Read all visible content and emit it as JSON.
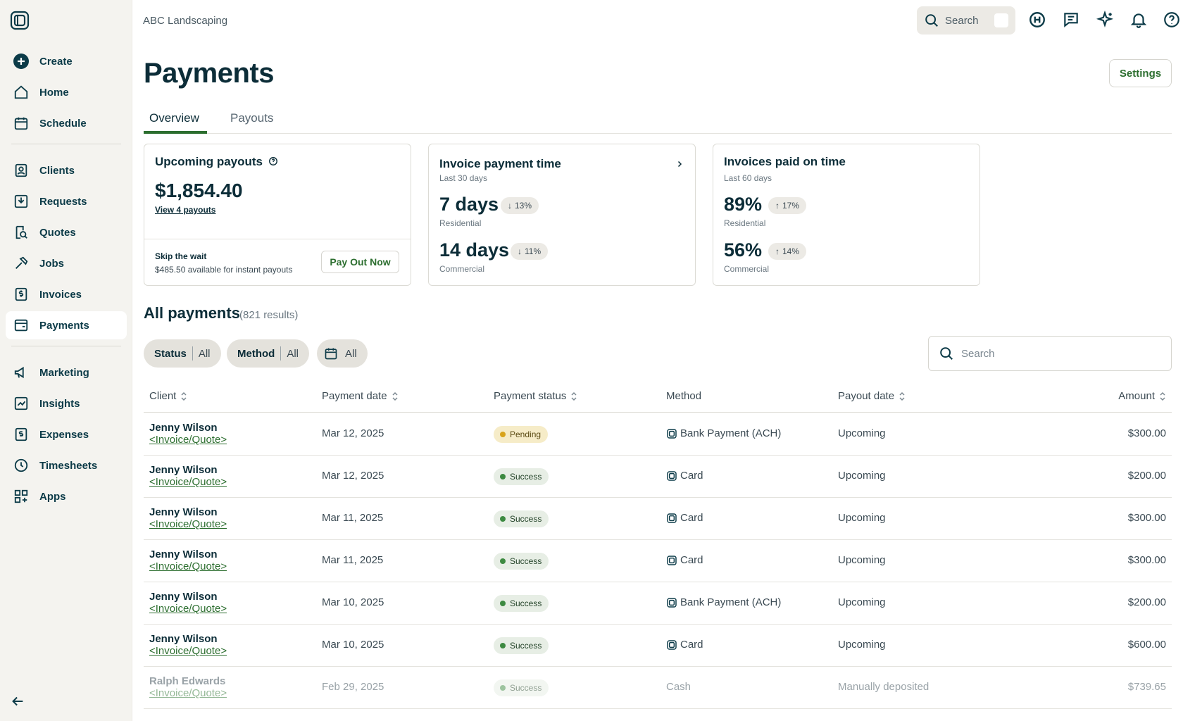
{
  "company": "ABC Landscaping",
  "topbar": {
    "search_label": "Search"
  },
  "nav": {
    "create": "Create",
    "home": "Home",
    "schedule": "Schedule",
    "clients": "Clients",
    "requests": "Requests",
    "quotes": "Quotes",
    "jobs": "Jobs",
    "invoices": "Invoices",
    "payments": "Payments",
    "marketing": "Marketing",
    "insights": "Insights",
    "expenses": "Expenses",
    "timesheets": "Timesheets",
    "apps": "Apps"
  },
  "page": {
    "title": "Payments",
    "settings_label": "Settings"
  },
  "tabs": {
    "overview": "Overview",
    "payouts": "Payouts"
  },
  "upcoming": {
    "title": "Upcoming payouts",
    "amount": "$1,854.40",
    "view_link": "View 4 payouts",
    "skip_title": "Skip the wait",
    "skip_desc": "$485.50 available for instant payouts",
    "button": "Pay Out Now"
  },
  "invoice_time": {
    "title": "Invoice payment time",
    "period": "Last 30 days",
    "residential_value": "7 days",
    "residential_delta": "13%",
    "residential_label": "Residential",
    "commercial_value": "14 days",
    "commercial_delta": "11%",
    "commercial_label": "Commercial"
  },
  "on_time": {
    "title": "Invoices paid on time",
    "period": "Last 60 days",
    "residential_value": "89%",
    "residential_delta": "17%",
    "residential_label": "Residential",
    "commercial_value": "56%",
    "commercial_delta": "14%",
    "commercial_label": "Commercial"
  },
  "all_payments": {
    "title": "All payments",
    "results": "(821 results)"
  },
  "filters": {
    "status_key": "Status",
    "status_val": "All",
    "method_key": "Method",
    "method_val": "All",
    "date_val": "All"
  },
  "table_search_placeholder": "Search",
  "columns": {
    "client": "Client",
    "payment_date": "Payment date",
    "payment_status": "Payment status",
    "method": "Method",
    "payout_date": "Payout date",
    "amount": "Amount"
  },
  "rows": [
    {
      "client": "Jenny Wilson",
      "link": "<Invoice/Quote>",
      "date": "Mar 12, 2025",
      "status": "Pending",
      "method": "Bank Payment (ACH)",
      "payout": "Upcoming",
      "amount": "$300.00"
    },
    {
      "client": "Jenny Wilson",
      "link": "<Invoice/Quote>",
      "date": "Mar 12, 2025",
      "status": "Success",
      "method": "Card",
      "payout": "Upcoming",
      "amount": "$200.00"
    },
    {
      "client": "Jenny Wilson",
      "link": "<Invoice/Quote>",
      "date": "Mar 11, 2025",
      "status": "Success",
      "method": "Card",
      "payout": "Upcoming",
      "amount": "$300.00"
    },
    {
      "client": "Jenny Wilson",
      "link": "<Invoice/Quote>",
      "date": "Mar 11, 2025",
      "status": "Success",
      "method": "Card",
      "payout": "Upcoming",
      "amount": "$300.00"
    },
    {
      "client": "Jenny Wilson",
      "link": "<Invoice/Quote>",
      "date": "Mar 10, 2025",
      "status": "Success",
      "method": "Bank Payment (ACH)",
      "payout": "Upcoming",
      "amount": "$200.00"
    },
    {
      "client": "Jenny Wilson",
      "link": "<Invoice/Quote>",
      "date": "Mar 10, 2025",
      "status": "Success",
      "method": "Card",
      "payout": "Upcoming",
      "amount": "$600.00"
    },
    {
      "client": "Ralph Edwards",
      "link": "<Invoice/Quote>",
      "date": "Feb 29, 2025",
      "status": "Success",
      "method": "Cash",
      "payout": "Manually deposited",
      "amount": "$739.65"
    }
  ]
}
